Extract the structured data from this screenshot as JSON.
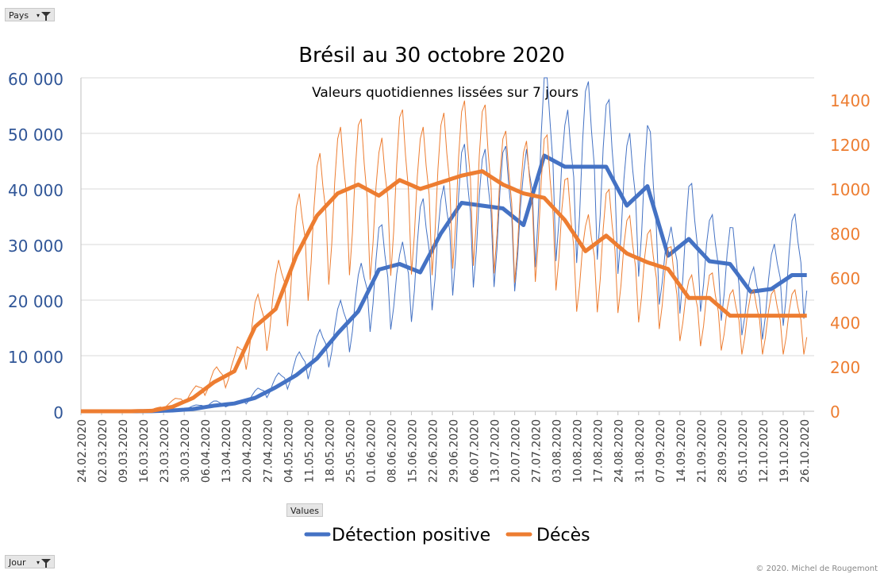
{
  "filters": {
    "pays": "Pays",
    "values": "Values",
    "jour": "Jour"
  },
  "copyright": "© 2020.  Michel de Rougemont",
  "chart_data": {
    "type": "line",
    "title": "Brésil au 30 octobre 2020",
    "subtitle": "Valeurs quotidiennes lissées sur 7 jours",
    "y_left": {
      "min": 0,
      "max": 60000,
      "ticks": [
        "0",
        "10 000",
        "20 000",
        "30 000",
        "40 000",
        "50 000",
        "60 000"
      ],
      "color": "#2f5597"
    },
    "y_right": {
      "min": 0,
      "max": 1500,
      "ticks": [
        "0",
        "200",
        "400",
        "600",
        "800",
        "1000",
        "1200",
        "1400"
      ],
      "color": "#ed7d31"
    },
    "x_tick_labels": [
      "24.02.2020",
      "02.03.2020",
      "09.03.2020",
      "16.03.2020",
      "23.03.2020",
      "30.03.2020",
      "06.04.2020",
      "13.04.2020",
      "20.04.2020",
      "27.04.2020",
      "04.05.2020",
      "11.05.2020",
      "18.05.2020",
      "25.05.2020",
      "01.06.2020",
      "08.06.2020",
      "15.06.2020",
      "22.06.2020",
      "29.06.2020",
      "06.07.2020",
      "13.07.2020",
      "20.07.2020",
      "27.07.2020",
      "03.08.2020",
      "10.08.2020",
      "17.08.2020",
      "24.08.2020",
      "31.08.2020",
      "07.09.2020",
      "14.09.2020",
      "21.09.2020",
      "28.09.2020",
      "05.10.2020",
      "12.10.2020",
      "19.10.2020",
      "26.10.2020"
    ],
    "grid": true,
    "legend_position": "bottom",
    "series": [
      {
        "name": "Détection positive",
        "axis": "left",
        "color": "#4472c4",
        "weekly_smoothed": [
          0,
          0,
          0,
          20,
          150,
          400,
          1000,
          1400,
          2400,
          4300,
          6500,
          9500,
          14000,
          18000,
          25500,
          26500,
          25000,
          32000,
          37500,
          37000,
          36500,
          33500,
          46000,
          44000,
          44000,
          44000,
          37000,
          40500,
          28000,
          31000,
          27000,
          26500,
          21500,
          22000,
          24500
        ],
        "weekly_daily": [
          0,
          0,
          0,
          100,
          200,
          800,
          1500,
          1200,
          3000,
          5000,
          8000,
          11000,
          15000,
          20000,
          27000,
          23000,
          30000,
          31000,
          38000,
          37000,
          38000,
          35000,
          50000,
          42000,
          47000,
          45000,
          39000,
          42000,
          25000,
          33000,
          28000,
          27000,
          20000,
          23000,
          28000
        ]
      },
      {
        "name": "Décès",
        "axis": "right",
        "color": "#ed7d31",
        "weekly_smoothed": [
          0,
          0,
          0,
          2,
          20,
          60,
          130,
          180,
          380,
          460,
          700,
          880,
          980,
          1020,
          970,
          1040,
          1000,
          1030,
          1060,
          1080,
          1020,
          980,
          960,
          860,
          720,
          790,
          710,
          670,
          640,
          510,
          510,
          430
        ],
        "weekly_daily": [
          0,
          0,
          0,
          5,
          40,
          80,
          150,
          200,
          400,
          500,
          750,
          900,
          1000,
          1050,
          950,
          1080,
          1000,
          1050,
          1100,
          1100,
          1000,
          950,
          1000,
          850,
          680,
          800,
          700,
          650,
          600,
          480,
          500,
          430
        ]
      }
    ]
  }
}
